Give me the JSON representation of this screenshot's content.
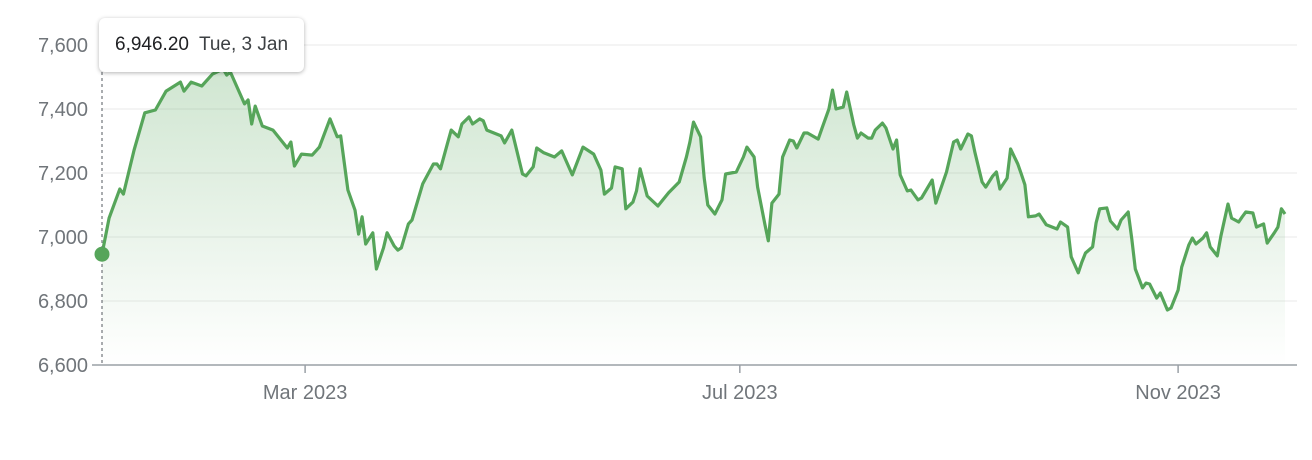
{
  "tooltip": {
    "value": "6,946.20",
    "date": "Tue, 3 Jan"
  },
  "colors": {
    "line": "#56a55a",
    "fill": "#56a55a",
    "grid": "#eeeeee",
    "axis": "#9aa0a6",
    "text": "#70757a"
  },
  "chart_data": {
    "type": "area",
    "title": "",
    "xlabel": "",
    "ylabel": "",
    "ylim": [
      6600,
      7650
    ],
    "xlim": [
      "2023-01-03",
      "2023-12-01"
    ],
    "grid": true,
    "yticks": [
      {
        "v": 6600,
        "label": "6,600"
      },
      {
        "v": 6800,
        "label": "6,800"
      },
      {
        "v": 7000,
        "label": "7,000"
      },
      {
        "v": 7200,
        "label": "7,200"
      },
      {
        "v": 7400,
        "label": "7,400"
      },
      {
        "v": 7600,
        "label": "7,600"
      }
    ],
    "xticks": [
      {
        "d": "2023-03-01",
        "label": "Mar 2023"
      },
      {
        "d": "2023-07-01",
        "label": "Jul 2023"
      },
      {
        "d": "2023-11-01",
        "label": "Nov 2023"
      }
    ],
    "highlight": {
      "d": "2023-01-03",
      "v": 6946.2
    },
    "series": [
      {
        "points": [
          [
            "2023-01-03",
            6946.2
          ],
          [
            "2023-01-05",
            7059
          ],
          [
            "2023-01-08",
            7150
          ],
          [
            "2023-01-09",
            7134
          ],
          [
            "2023-01-12",
            7272
          ],
          [
            "2023-01-15",
            7388
          ],
          [
            "2023-01-18",
            7397
          ],
          [
            "2023-01-21",
            7456
          ],
          [
            "2023-01-25",
            7484
          ],
          [
            "2023-01-26",
            7456
          ],
          [
            "2023-01-28",
            7484
          ],
          [
            "2023-01-31",
            7472
          ],
          [
            "2023-02-03",
            7509
          ],
          [
            "2023-02-06",
            7525
          ],
          [
            "2023-02-07",
            7506
          ],
          [
            "2023-02-08",
            7516
          ],
          [
            "2023-02-10",
            7466
          ],
          [
            "2023-02-12",
            7416
          ],
          [
            "2023-02-13",
            7428
          ],
          [
            "2023-02-14",
            7353
          ],
          [
            "2023-02-15",
            7409
          ],
          [
            "2023-02-17",
            7347
          ],
          [
            "2023-02-20",
            7334
          ],
          [
            "2023-02-24",
            7278
          ],
          [
            "2023-02-25",
            7297
          ],
          [
            "2023-02-26",
            7222
          ],
          [
            "2023-02-28",
            7259
          ],
          [
            "2023-03-03",
            7256
          ],
          [
            "2023-03-05",
            7281
          ],
          [
            "2023-03-08",
            7369
          ],
          [
            "2023-03-10",
            7313
          ],
          [
            "2023-03-11",
            7316
          ],
          [
            "2023-03-13",
            7147
          ],
          [
            "2023-03-15",
            7084
          ],
          [
            "2023-03-16",
            7009
          ],
          [
            "2023-03-17",
            7063
          ],
          [
            "2023-03-18",
            6978
          ],
          [
            "2023-03-20",
            7013
          ],
          [
            "2023-03-21",
            6900
          ],
          [
            "2023-03-23",
            6966
          ],
          [
            "2023-03-24",
            7013
          ],
          [
            "2023-03-26",
            6972
          ],
          [
            "2023-03-27",
            6959
          ],
          [
            "2023-03-28",
            6966
          ],
          [
            "2023-03-30",
            7041
          ],
          [
            "2023-03-31",
            7053
          ],
          [
            "2023-04-03",
            7166
          ],
          [
            "2023-04-06",
            7228
          ],
          [
            "2023-04-07",
            7228
          ],
          [
            "2023-04-08",
            7213
          ],
          [
            "2023-04-10",
            7294
          ],
          [
            "2023-04-11",
            7334
          ],
          [
            "2023-04-13",
            7313
          ],
          [
            "2023-04-14",
            7353
          ],
          [
            "2023-04-16",
            7375
          ],
          [
            "2023-04-17",
            7353
          ],
          [
            "2023-04-19",
            7369
          ],
          [
            "2023-04-20",
            7363
          ],
          [
            "2023-04-21",
            7334
          ],
          [
            "2023-04-25",
            7316
          ],
          [
            "2023-04-26",
            7294
          ],
          [
            "2023-04-28",
            7334
          ],
          [
            "2023-05-01",
            7197
          ],
          [
            "2023-05-02",
            7191
          ],
          [
            "2023-05-04",
            7219
          ],
          [
            "2023-05-05",
            7278
          ],
          [
            "2023-05-07",
            7263
          ],
          [
            "2023-05-10",
            7250
          ],
          [
            "2023-05-12",
            7269
          ],
          [
            "2023-05-15",
            7194
          ],
          [
            "2023-05-18",
            7281
          ],
          [
            "2023-05-21",
            7259
          ],
          [
            "2023-05-23",
            7209
          ],
          [
            "2023-05-24",
            7134
          ],
          [
            "2023-05-26",
            7153
          ],
          [
            "2023-05-27",
            7219
          ],
          [
            "2023-05-29",
            7213
          ],
          [
            "2023-05-30",
            7088
          ],
          [
            "2023-06-01",
            7109
          ],
          [
            "2023-06-02",
            7144
          ],
          [
            "2023-06-03",
            7213
          ],
          [
            "2023-06-05",
            7128
          ],
          [
            "2023-06-08",
            7097
          ],
          [
            "2023-06-11",
            7138
          ],
          [
            "2023-06-14",
            7172
          ],
          [
            "2023-06-16",
            7250
          ],
          [
            "2023-06-17",
            7297
          ],
          [
            "2023-06-18",
            7359
          ],
          [
            "2023-06-20",
            7313
          ],
          [
            "2023-06-21",
            7184
          ],
          [
            "2023-06-22",
            7100
          ],
          [
            "2023-06-24",
            7072
          ],
          [
            "2023-06-26",
            7116
          ],
          [
            "2023-06-27",
            7197
          ],
          [
            "2023-06-30",
            7203
          ],
          [
            "2023-07-02",
            7250
          ],
          [
            "2023-07-03",
            7281
          ],
          [
            "2023-07-05",
            7250
          ],
          [
            "2023-07-06",
            7156
          ],
          [
            "2023-07-08",
            7041
          ],
          [
            "2023-07-09",
            6988
          ],
          [
            "2023-07-10",
            7106
          ],
          [
            "2023-07-12",
            7134
          ],
          [
            "2023-07-13",
            7250
          ],
          [
            "2023-07-15",
            7303
          ],
          [
            "2023-07-16",
            7300
          ],
          [
            "2023-07-17",
            7278
          ],
          [
            "2023-07-19",
            7325
          ],
          [
            "2023-07-20",
            7325
          ],
          [
            "2023-07-23",
            7306
          ],
          [
            "2023-07-24",
            7338
          ],
          [
            "2023-07-26",
            7400
          ],
          [
            "2023-07-27",
            7459
          ],
          [
            "2023-07-28",
            7400
          ],
          [
            "2023-07-30",
            7406
          ],
          [
            "2023-07-31",
            7453
          ],
          [
            "2023-08-02",
            7350
          ],
          [
            "2023-08-03",
            7309
          ],
          [
            "2023-08-04",
            7325
          ],
          [
            "2023-08-06",
            7309
          ],
          [
            "2023-08-07",
            7309
          ],
          [
            "2023-08-08",
            7334
          ],
          [
            "2023-08-10",
            7356
          ],
          [
            "2023-08-11",
            7341
          ],
          [
            "2023-08-13",
            7275
          ],
          [
            "2023-08-14",
            7303
          ],
          [
            "2023-08-15",
            7194
          ],
          [
            "2023-08-17",
            7144
          ],
          [
            "2023-08-18",
            7147
          ],
          [
            "2023-08-20",
            7116
          ],
          [
            "2023-08-21",
            7122
          ],
          [
            "2023-08-24",
            7178
          ],
          [
            "2023-08-25",
            7106
          ],
          [
            "2023-08-28",
            7203
          ],
          [
            "2023-08-30",
            7297
          ],
          [
            "2023-08-31",
            7303
          ],
          [
            "2023-09-01",
            7275
          ],
          [
            "2023-09-03",
            7322
          ],
          [
            "2023-09-04",
            7316
          ],
          [
            "2023-09-05",
            7263
          ],
          [
            "2023-09-07",
            7172
          ],
          [
            "2023-09-08",
            7156
          ],
          [
            "2023-09-10",
            7191
          ],
          [
            "2023-09-11",
            7203
          ],
          [
            "2023-09-12",
            7150
          ],
          [
            "2023-09-14",
            7184
          ],
          [
            "2023-09-15",
            7275
          ],
          [
            "2023-09-17",
            7228
          ],
          [
            "2023-09-18",
            7197
          ],
          [
            "2023-09-19",
            7163
          ],
          [
            "2023-09-20",
            7063
          ],
          [
            "2023-09-22",
            7066
          ],
          [
            "2023-09-23",
            7072
          ],
          [
            "2023-09-25",
            7038
          ],
          [
            "2023-09-28",
            7025
          ],
          [
            "2023-09-29",
            7047
          ],
          [
            "2023-10-01",
            7031
          ],
          [
            "2023-10-02",
            6938
          ],
          [
            "2023-10-04",
            6888
          ],
          [
            "2023-10-05",
            6922
          ],
          [
            "2023-10-06",
            6950
          ],
          [
            "2023-10-08",
            6969
          ],
          [
            "2023-10-09",
            7044
          ],
          [
            "2023-10-10",
            7088
          ],
          [
            "2023-10-12",
            7091
          ],
          [
            "2023-10-13",
            7050
          ],
          [
            "2023-10-15",
            7025
          ],
          [
            "2023-10-16",
            7053
          ],
          [
            "2023-10-18",
            7078
          ],
          [
            "2023-10-19",
            6994
          ],
          [
            "2023-10-20",
            6900
          ],
          [
            "2023-10-22",
            6841
          ],
          [
            "2023-10-23",
            6856
          ],
          [
            "2023-10-24",
            6853
          ],
          [
            "2023-10-26",
            6809
          ],
          [
            "2023-10-27",
            6825
          ],
          [
            "2023-10-29",
            6772
          ],
          [
            "2023-10-30",
            6778
          ],
          [
            "2023-11-01",
            6834
          ],
          [
            "2023-11-02",
            6906
          ],
          [
            "2023-11-04",
            6975
          ],
          [
            "2023-11-05",
            6997
          ],
          [
            "2023-11-06",
            6978
          ],
          [
            "2023-11-08",
            6997
          ],
          [
            "2023-11-09",
            7013
          ],
          [
            "2023-11-10",
            6969
          ],
          [
            "2023-11-12",
            6941
          ],
          [
            "2023-11-13",
            7003
          ],
          [
            "2023-11-15",
            7103
          ],
          [
            "2023-11-16",
            7059
          ],
          [
            "2023-11-18",
            7047
          ],
          [
            "2023-11-19",
            7063
          ],
          [
            "2023-11-20",
            7078
          ],
          [
            "2023-11-22",
            7075
          ],
          [
            "2023-11-23",
            7031
          ],
          [
            "2023-11-25",
            7041
          ],
          [
            "2023-11-26",
            6981
          ],
          [
            "2023-11-28",
            7013
          ],
          [
            "2023-11-29",
            7031
          ],
          [
            "2023-11-30",
            7088
          ],
          [
            "2023-12-01",
            7072
          ]
        ]
      }
    ]
  }
}
